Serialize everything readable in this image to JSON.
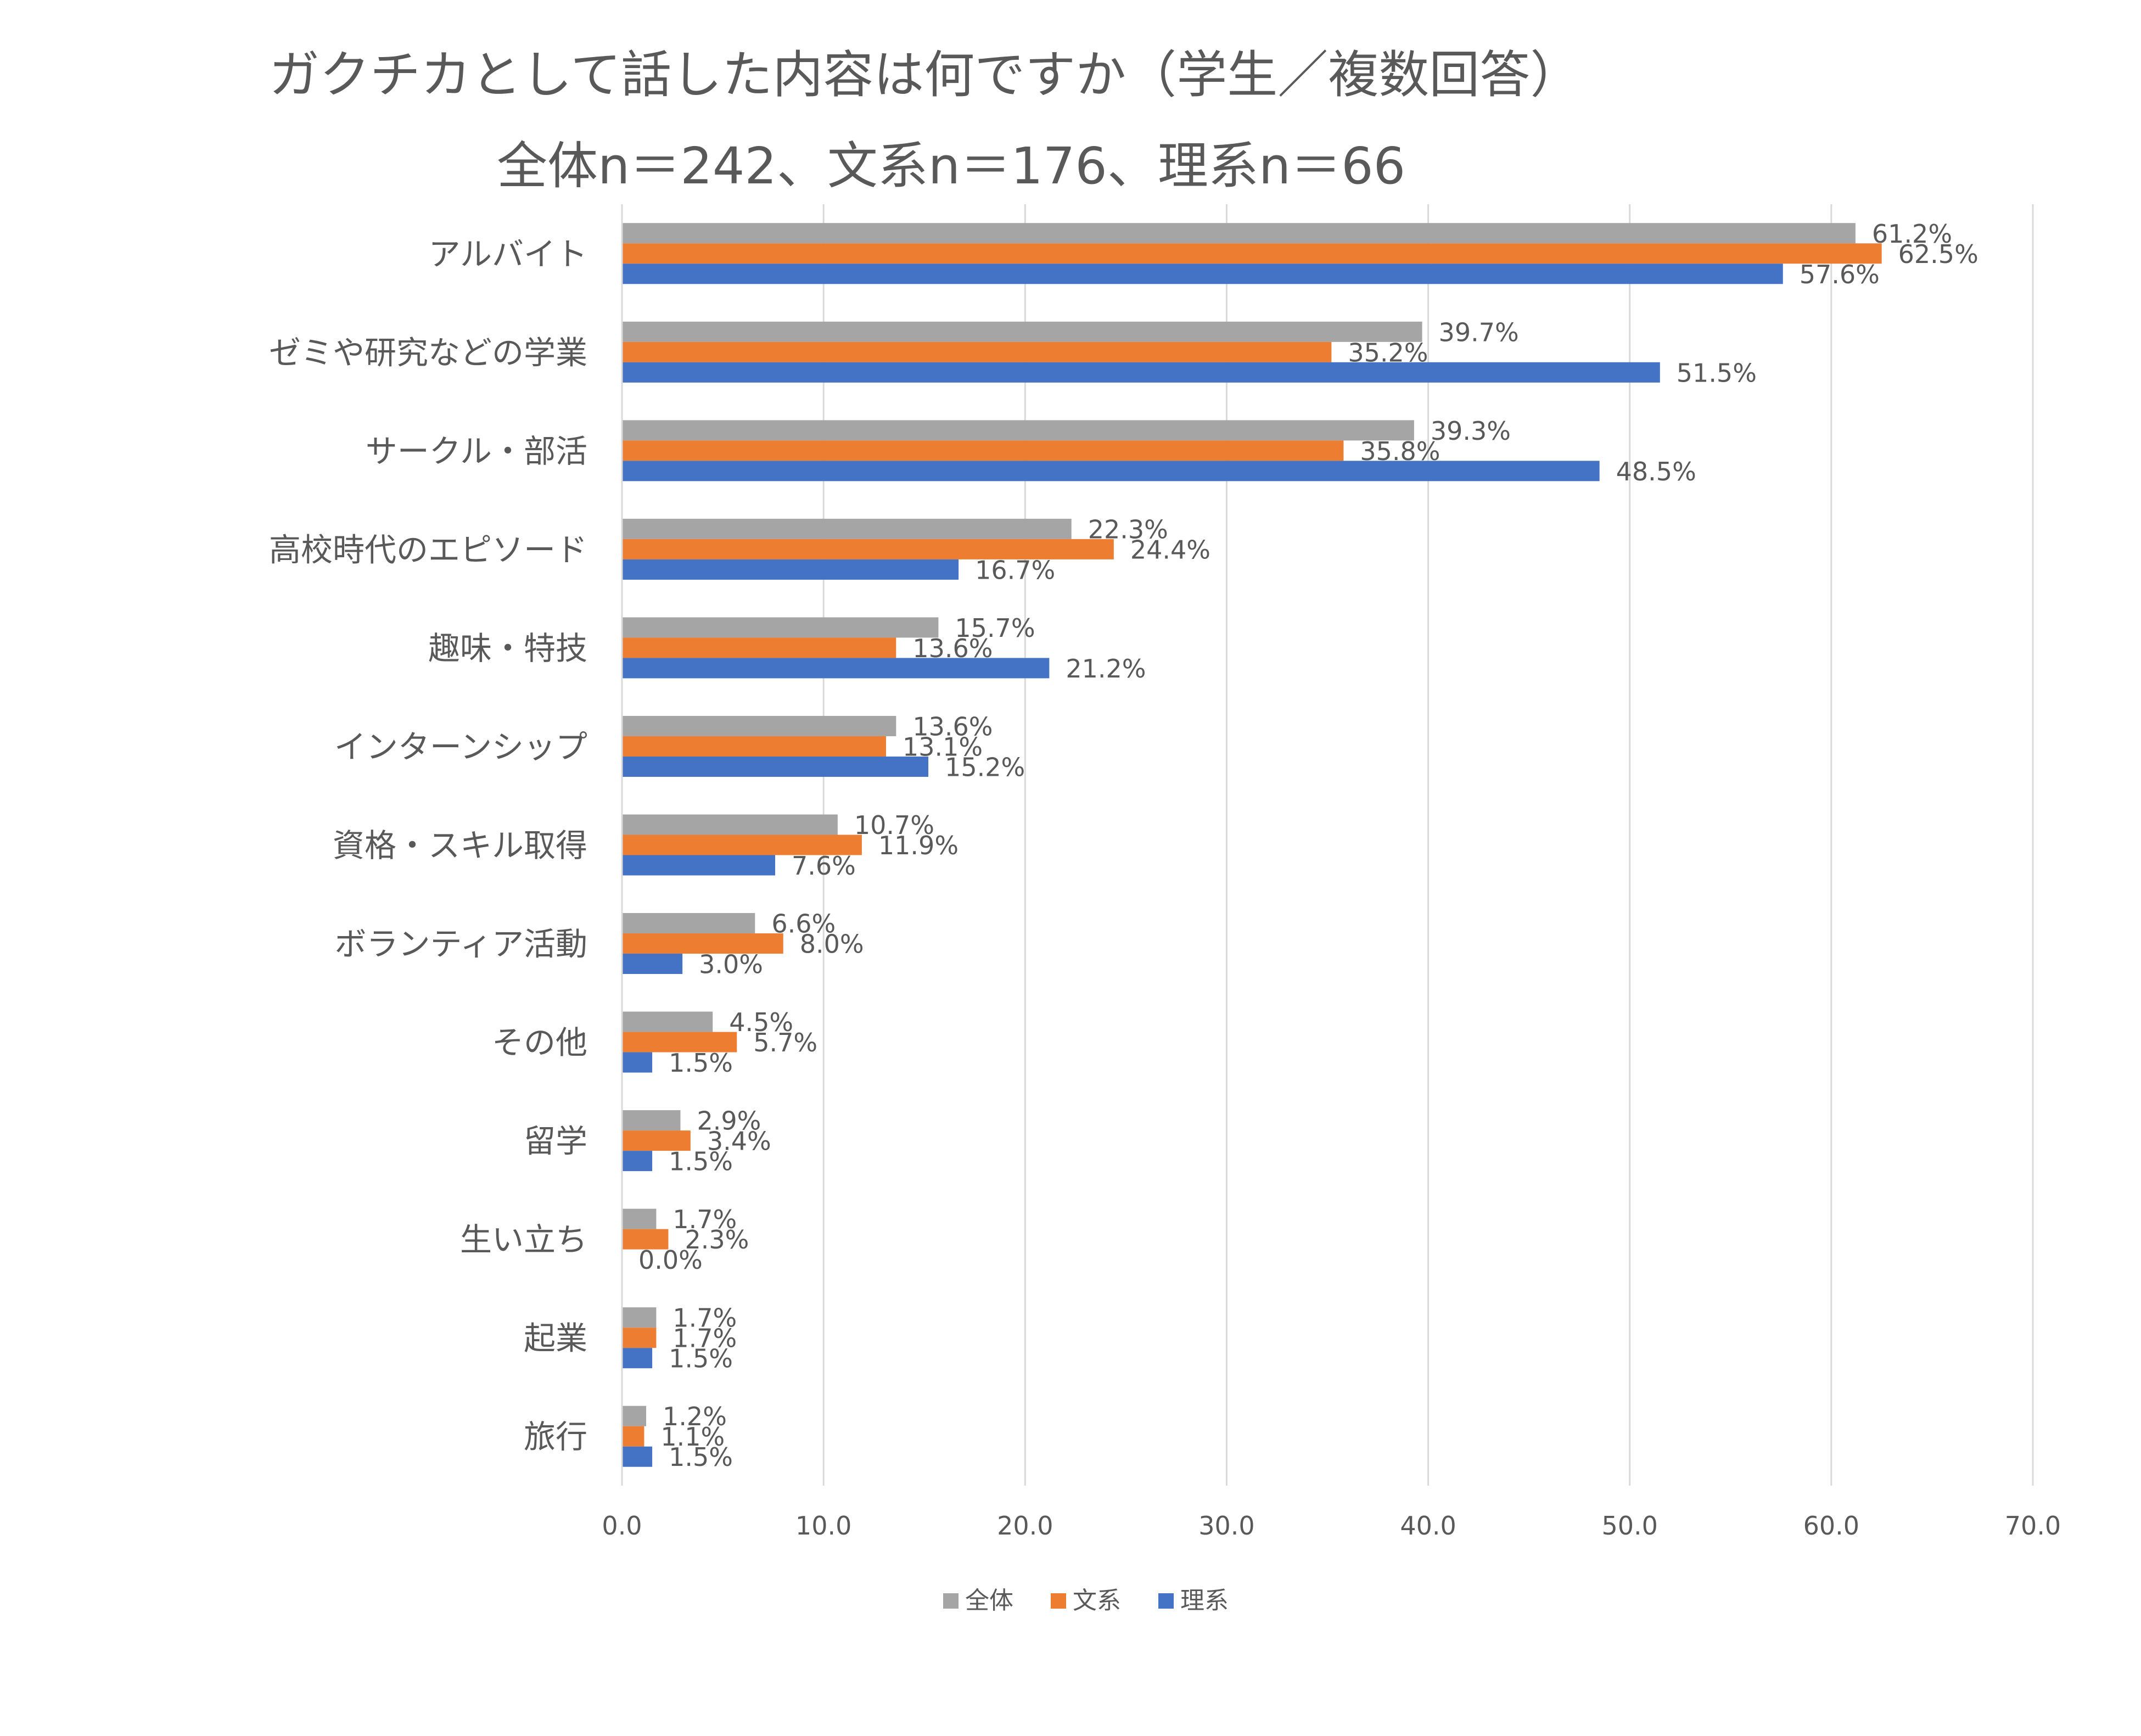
{
  "chart_data": {
    "type": "bar",
    "orientation": "horizontal",
    "title": "ガクチカとして話した内容は何ですか（学生／複数回答）",
    "subtitle": "全体n＝242、文系n＝176、理系n＝66",
    "categories": [
      "アルバイト",
      "ゼミや研究などの学業",
      "サークル・部活",
      "高校時代のエピソード",
      "趣味・特技",
      "インターンシップ",
      "資格・スキル取得",
      "ボランティア活動",
      "その他",
      "留学",
      "生い立ち",
      "起業",
      "旅行"
    ],
    "series": [
      {
        "name": "全体",
        "color": "#a5a5a5",
        "values": [
          61.2,
          39.7,
          39.3,
          22.3,
          15.7,
          13.6,
          10.7,
          6.6,
          4.5,
          2.9,
          1.7,
          1.7,
          1.2
        ],
        "labels": [
          "61.2%",
          "39.7%",
          "39.3%",
          "22.3%",
          "15.7%",
          "13.6%",
          "10.7%",
          "6.6%",
          "4.5%",
          "2.9%",
          "1.7%",
          "1.7%",
          "1.2%"
        ]
      },
      {
        "name": "文系",
        "color": "#ed7d31",
        "values": [
          62.5,
          35.2,
          35.8,
          24.4,
          13.6,
          13.1,
          11.9,
          8.0,
          5.7,
          3.4,
          2.3,
          1.7,
          1.1
        ],
        "labels": [
          "62.5%",
          "35.2%",
          "35.8%",
          "24.4%",
          "13.6%",
          "13.1%",
          "11.9%",
          "8.0%",
          "5.7%",
          "3.4%",
          "2.3%",
          "1.7%",
          "1.1%"
        ]
      },
      {
        "name": "理系",
        "color": "#4472c4",
        "values": [
          57.6,
          51.5,
          48.5,
          16.7,
          21.2,
          15.2,
          7.6,
          3.0,
          1.5,
          1.5,
          0.0,
          1.5,
          1.5
        ],
        "labels": [
          "57.6%",
          "51.5%",
          "48.5%",
          "16.7%",
          "21.2%",
          "15.2%",
          "7.6%",
          "3.0%",
          "1.5%",
          "1.5%",
          "0.0%",
          "1.5%",
          "1.5%"
        ]
      }
    ],
    "xlim": [
      0,
      70
    ],
    "xticks": [
      "0.0",
      "10.0",
      "20.0",
      "30.0",
      "40.0",
      "50.0",
      "60.0",
      "70.0"
    ],
    "xtick_values": [
      0,
      10,
      20,
      30,
      40,
      50,
      60,
      70
    ],
    "grid": true,
    "legend": "bottom"
  }
}
